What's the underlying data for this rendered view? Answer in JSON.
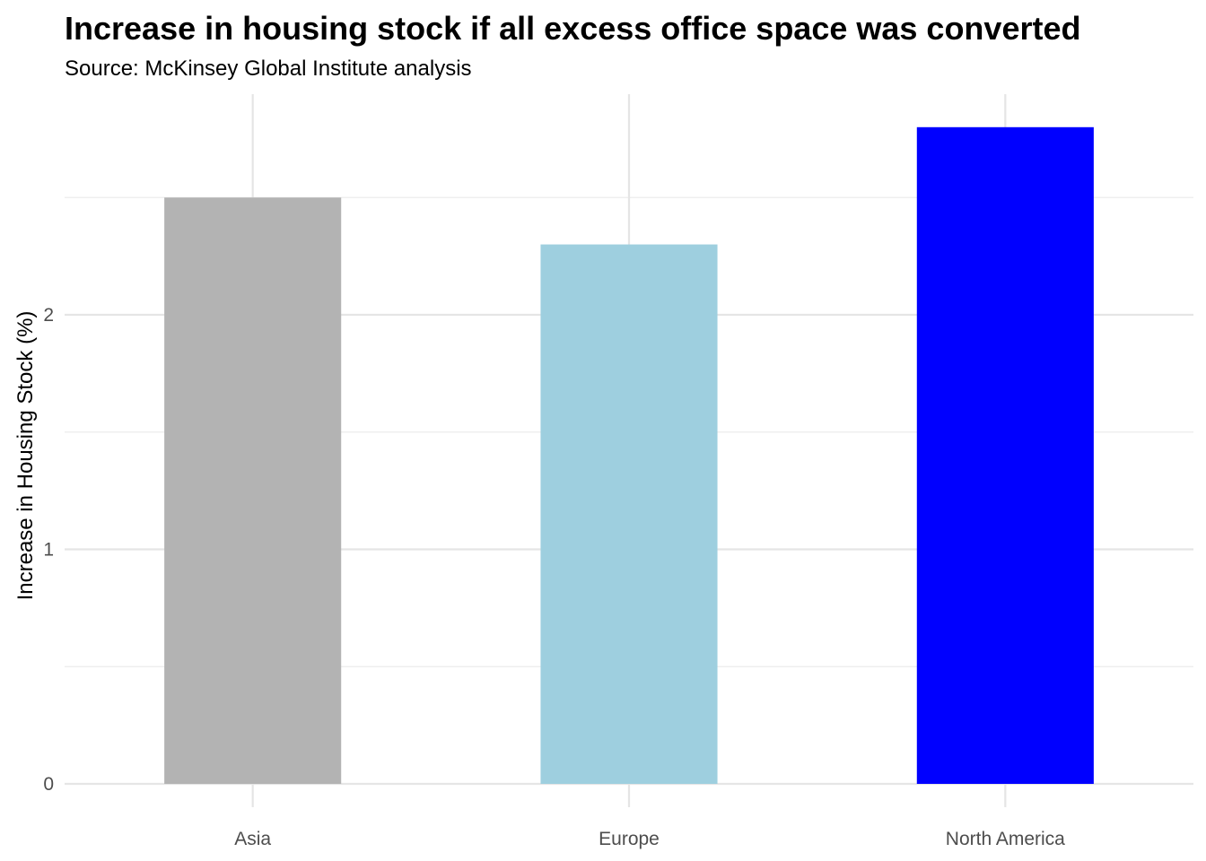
{
  "chart_data": {
    "type": "bar",
    "title": "Increase in housing stock if all excess office space was converted",
    "subtitle": "Source: McKinsey Global Institute analysis",
    "xlabel": "",
    "ylabel": "Increase in Housing Stock (%)",
    "categories": [
      "Asia",
      "Europe",
      "North America"
    ],
    "values": [
      2.5,
      2.3,
      2.8
    ],
    "colors": [
      "#B3B3B3",
      "#9ECFDF",
      "#0000FF"
    ],
    "ylim": [
      0,
      2.95
    ],
    "yticks": [
      0,
      1,
      2
    ],
    "ytick_labels": [
      "0",
      "1",
      "2"
    ],
    "grid": true,
    "legend": "none"
  }
}
